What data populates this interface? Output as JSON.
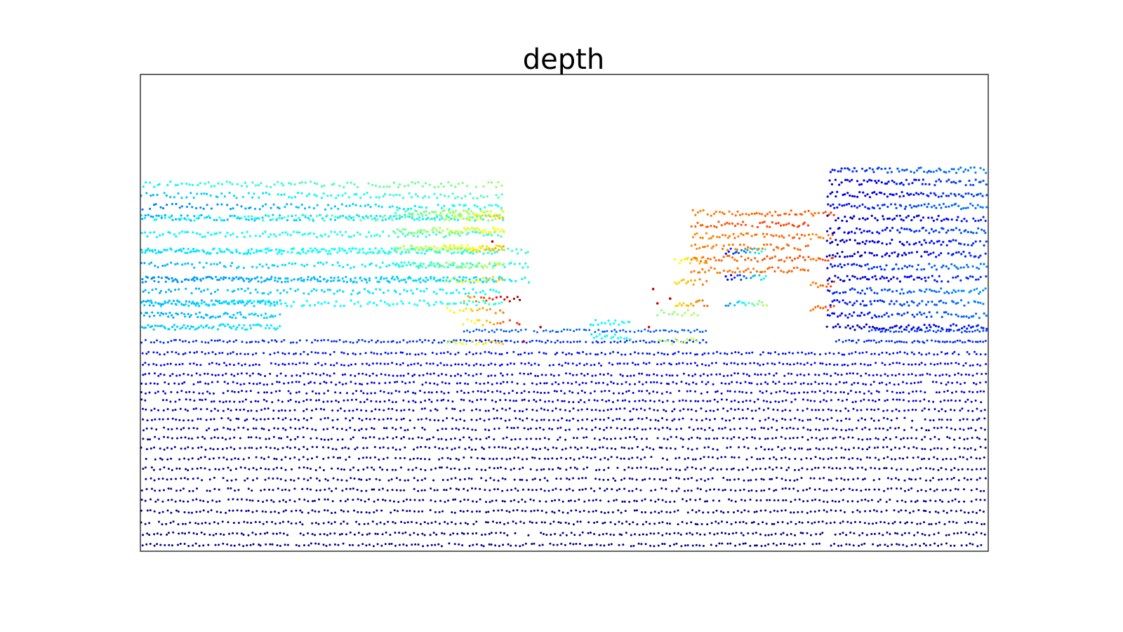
{
  "chart_data": {
    "type": "scatter",
    "title": "depth",
    "xlabel": "",
    "ylabel": "",
    "axes_visible": false,
    "grid": false,
    "legend": "none",
    "colormap": "jet",
    "colormap_stops": [
      "#00007f",
      "#0000ff",
      "#007fff",
      "#00ffff",
      "#7fff7f",
      "#ffff00",
      "#ff7f00",
      "#ff0000",
      "#7f0000"
    ],
    "frame_color": "#000000",
    "background": "#ffffff",
    "xlim": [
      0,
      1
    ],
    "ylim": [
      0,
      1
    ],
    "scan_rows": [
      {
        "y": 0.012,
        "x_start": 0.0,
        "x_end": 1.0,
        "density": 220,
        "value": 0.01
      },
      {
        "y": 0.035,
        "x_start": 0.0,
        "x_end": 1.0,
        "density": 215,
        "value": 0.01
      },
      {
        "y": 0.058,
        "x_start": 0.0,
        "x_end": 1.0,
        "density": 210,
        "value": 0.01
      },
      {
        "y": 0.082,
        "x_start": 0.0,
        "x_end": 1.0,
        "density": 205,
        "value": 0.01
      },
      {
        "y": 0.105,
        "x_start": 0.0,
        "x_end": 1.0,
        "density": 205,
        "value": 0.02
      },
      {
        "y": 0.128,
        "x_start": 0.0,
        "x_end": 1.0,
        "density": 200,
        "value": 0.02
      },
      {
        "y": 0.15,
        "x_start": 0.0,
        "x_end": 1.0,
        "density": 200,
        "value": 0.02
      },
      {
        "y": 0.172,
        "x_start": 0.0,
        "x_end": 1.0,
        "density": 200,
        "value": 0.02
      },
      {
        "y": 0.194,
        "x_start": 0.0,
        "x_end": 1.0,
        "density": 200,
        "value": 0.03
      },
      {
        "y": 0.215,
        "x_start": 0.0,
        "x_end": 1.0,
        "density": 200,
        "value": 0.03
      },
      {
        "y": 0.236,
        "x_start": 0.0,
        "x_end": 1.0,
        "density": 200,
        "value": 0.04
      },
      {
        "y": 0.256,
        "x_start": 0.0,
        "x_end": 1.0,
        "density": 200,
        "value": 0.05
      },
      {
        "y": 0.276,
        "x_start": 0.0,
        "x_end": 1.0,
        "density": 200,
        "value": 0.06
      },
      {
        "y": 0.296,
        "x_start": 0.0,
        "x_end": 1.0,
        "density": 200,
        "value": 0.07
      },
      {
        "y": 0.315,
        "x_start": 0.0,
        "x_end": 1.0,
        "density": 210,
        "value": 0.08
      },
      {
        "y": 0.333,
        "x_start": 0.0,
        "x_end": 1.0,
        "density": 210,
        "value": 0.09
      },
      {
        "y": 0.352,
        "x_start": 0.0,
        "x_end": 1.0,
        "density": 215,
        "value": 0.1
      },
      {
        "y": 0.37,
        "x_start": 0.0,
        "x_end": 1.0,
        "density": 220,
        "value": 0.11
      },
      {
        "y": 0.392,
        "x_start": 0.0,
        "x_end": 1.0,
        "density": 230,
        "value": 0.13
      },
      {
        "y": 0.415,
        "x_start": 0.0,
        "x_end": 1.0,
        "density": 230,
        "value": 0.14
      },
      {
        "y": 0.44,
        "x_start": 0.0,
        "x_end": 0.67,
        "density": 180,
        "value": 0.17
      },
      {
        "y": 0.44,
        "x_start": 0.82,
        "x_end": 1.0,
        "density": 60,
        "value": 0.17
      },
      {
        "y": 0.462,
        "x_start": 0.38,
        "x_end": 0.67,
        "density": 80,
        "value": 0.22
      },
      {
        "y": 0.462,
        "x_start": 0.86,
        "x_end": 1.0,
        "density": 45,
        "value": 0.19
      }
    ],
    "regions": [
      {
        "x": [
          0.0,
          0.165
        ],
        "y": [
          0.47,
          0.52
        ],
        "count": 210,
        "value": [
          0.3,
          0.34
        ],
        "rows": 3
      },
      {
        "x": [
          0.0,
          0.43
        ],
        "y": [
          0.52,
          0.57
        ],
        "count": 330,
        "value": [
          0.3,
          0.38
        ],
        "rows": 3
      },
      {
        "x": [
          0.0,
          0.46
        ],
        "y": [
          0.57,
          0.63
        ],
        "count": 360,
        "value": [
          0.3,
          0.4
        ],
        "rows": 3
      },
      {
        "x": [
          0.0,
          0.43
        ],
        "y": [
          0.63,
          0.7
        ],
        "count": 380,
        "value": [
          0.32,
          0.4
        ],
        "rows": 3
      },
      {
        "x": [
          0.0,
          0.43
        ],
        "y": [
          0.7,
          0.77
        ],
        "count": 400,
        "value": [
          0.3,
          0.45
        ],
        "rows": 4
      },
      {
        "x": [
          0.0,
          0.36
        ],
        "y": [
          0.77,
          0.76
        ],
        "count": 0,
        "value": [
          0.3,
          0.4
        ],
        "rows": 0
      },
      {
        "x": [
          0.3,
          0.43
        ],
        "y": [
          0.6,
          0.71
        ],
        "count": 230,
        "value": [
          0.45,
          0.6
        ],
        "rows": 4
      },
      {
        "x": [
          0.36,
          0.43
        ],
        "y": [
          0.44,
          0.7
        ],
        "count": 90,
        "value": [
          0.55,
          0.7
        ],
        "rows": 5
      },
      {
        "x": [
          0.38,
          0.45
        ],
        "y": [
          0.48,
          0.53
        ],
        "count": 35,
        "value": [
          0.62,
          0.92
        ],
        "rows": 2
      },
      {
        "x": [
          0.53,
          0.58
        ],
        "y": [
          0.45,
          0.48
        ],
        "count": 30,
        "value": [
          0.36,
          0.42
        ],
        "rows": 2
      },
      {
        "x": [
          0.61,
          0.66
        ],
        "y": [
          0.44,
          0.5
        ],
        "count": 26,
        "value": [
          0.52,
          0.58
        ],
        "rows": 2
      },
      {
        "x": [
          0.63,
          0.67
        ],
        "y": [
          0.52,
          0.61
        ],
        "count": 45,
        "value": [
          0.6,
          0.72
        ],
        "rows": 3
      },
      {
        "x": [
          0.65,
          0.79
        ],
        "y": [
          0.59,
          0.71
        ],
        "count": 260,
        "value": [
          0.76,
          0.8
        ],
        "rows": 6
      },
      {
        "x": [
          0.69,
          0.74
        ],
        "y": [
          0.52,
          0.63
        ],
        "count": 55,
        "value": [
          0.2,
          0.5
        ],
        "rows": 3
      },
      {
        "x": [
          0.79,
          0.82
        ],
        "y": [
          0.51,
          0.71
        ],
        "count": 50,
        "value": [
          0.72,
          0.8
        ],
        "rows": 5
      },
      {
        "x": [
          0.81,
          1.0
        ],
        "y": [
          0.47,
          0.8
        ],
        "count": 900,
        "value": [
          0.1,
          0.22
        ],
        "rows": 14
      }
    ],
    "outliers": [
      {
        "x": 0.415,
        "y": 0.65,
        "value": 0.95
      },
      {
        "x": 0.625,
        "y": 0.53,
        "value": 0.95
      },
      {
        "x": 0.6,
        "y": 0.47,
        "value": 0.9
      },
      {
        "x": 0.472,
        "y": 0.47,
        "value": 0.95
      },
      {
        "x": 0.61,
        "y": 0.52,
        "value": 0.93
      },
      {
        "x": 0.605,
        "y": 0.55,
        "value": 0.92
      },
      {
        "x": 0.452,
        "y": 0.44,
        "value": 0.93
      }
    ]
  }
}
